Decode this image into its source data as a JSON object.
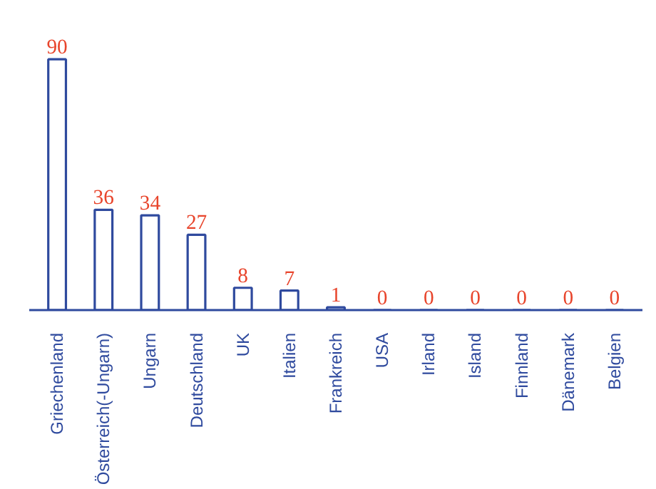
{
  "chart_data": {
    "type": "bar",
    "categories": [
      "Griechenland",
      "Österreich(-Ungarn)",
      "Ungarn",
      "Deutschland",
      "UK",
      "Italien",
      "Frankreich",
      "USA",
      "Irland",
      "Island",
      "Finnland",
      "Dänemark",
      "Belgien"
    ],
    "values": [
      90,
      36,
      34,
      27,
      8,
      7,
      1,
      0,
      0,
      0,
      0,
      0,
      0
    ],
    "color": "#2f4a9e",
    "data_labels": true
  }
}
